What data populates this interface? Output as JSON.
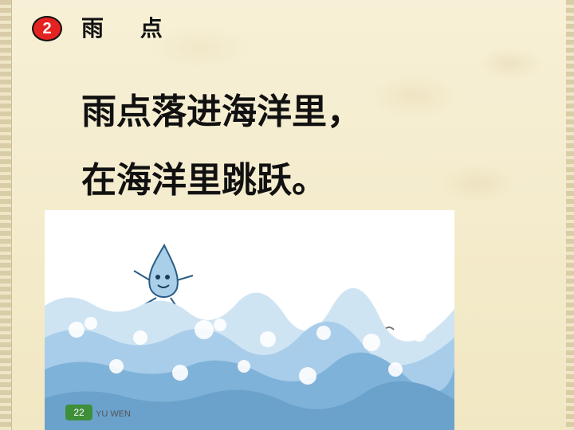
{
  "lesson": {
    "number": "2",
    "title": "雨 点"
  },
  "poem": {
    "line1": "雨点落进海洋里，",
    "line2": "在海洋里跳跃。"
  },
  "illustration": {
    "subject": "raindrop-jumping-over-ocean-waves",
    "page_number": "22",
    "page_tag": "YU WEN"
  },
  "colors": {
    "badge": "#e52222",
    "background": "#f4eccd",
    "text": "#111111",
    "wave": "#7fb2d8"
  }
}
